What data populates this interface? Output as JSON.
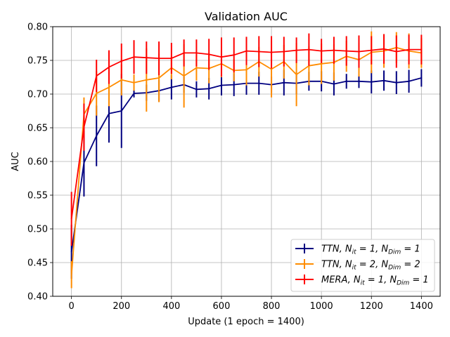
{
  "chart_data": {
    "type": "line",
    "title": "Validation AUC",
    "xlabel": "Update (1 epoch = 1400)",
    "ylabel": "AUC",
    "xlim": [
      -75,
      1475
    ],
    "ylim": [
      0.4,
      0.8
    ],
    "xticks": [
      "0",
      "200",
      "400",
      "600",
      "800",
      "1000",
      "1200",
      "1400"
    ],
    "yticks": [
      "0.40",
      "0.45",
      "0.50",
      "0.55",
      "0.60",
      "0.65",
      "0.70",
      "0.75",
      "0.80"
    ],
    "grid": true,
    "legend_position": "lower-right",
    "x": [
      0,
      50,
      100,
      150,
      200,
      250,
      300,
      350,
      400,
      450,
      500,
      550,
      600,
      650,
      700,
      750,
      800,
      850,
      900,
      950,
      1000,
      1050,
      1100,
      1150,
      1200,
      1250,
      1300,
      1350,
      1400
    ],
    "series": [
      {
        "name": "TTN, N_it = 1, N_Dim = 1",
        "color": "#000080",
        "values": [
          0.466,
          0.598,
          0.638,
          0.671,
          0.675,
          0.701,
          0.702,
          0.705,
          0.71,
          0.714,
          0.707,
          0.708,
          0.713,
          0.714,
          0.716,
          0.716,
          0.714,
          0.717,
          0.716,
          0.719,
          0.719,
          0.715,
          0.719,
          0.719,
          0.718,
          0.72,
          0.717,
          0.719,
          0.724
        ],
        "errors": [
          0.04,
          0.05,
          0.045,
          0.043,
          0.055,
          0.006,
          0.012,
          0.016,
          0.018,
          0.012,
          0.012,
          0.016,
          0.015,
          0.017,
          0.017,
          0.017,
          0.012,
          0.019,
          0.016,
          0.014,
          0.015,
          0.017,
          0.011,
          0.01,
          0.017,
          0.015,
          0.017,
          0.017,
          0.013
        ]
      },
      {
        "name": "TTN, N_it = 2, N_Dim = 2",
        "color": "#FF8C00",
        "values": [
          0.432,
          0.67,
          0.701,
          0.71,
          0.721,
          0.717,
          0.721,
          0.724,
          0.739,
          0.727,
          0.739,
          0.738,
          0.745,
          0.735,
          0.736,
          0.748,
          0.737,
          0.748,
          0.729,
          0.742,
          0.745,
          0.747,
          0.756,
          0.751,
          0.762,
          0.764,
          0.769,
          0.764,
          0.761
        ],
        "errors": [
          0.02,
          0.025,
          0.033,
          0.028,
          0.023,
          0.012,
          0.047,
          0.036,
          0.017,
          0.047,
          0.019,
          0.022,
          0.02,
          0.016,
          0.023,
          0.022,
          0.042,
          0.025,
          0.047,
          0.029,
          0.03,
          0.027,
          0.023,
          0.025,
          0.031,
          0.025,
          0.023,
          0.026,
          0.022
        ]
      },
      {
        "name": "MERA, N_it = 1, N_Dim = 1",
        "color": "#FF0000",
        "values": [
          0.515,
          0.651,
          0.727,
          0.74,
          0.749,
          0.755,
          0.754,
          0.753,
          0.753,
          0.761,
          0.761,
          0.759,
          0.755,
          0.758,
          0.764,
          0.763,
          0.762,
          0.763,
          0.765,
          0.766,
          0.764,
          0.765,
          0.764,
          0.763,
          0.765,
          0.767,
          0.763,
          0.766,
          0.766
        ],
        "errors": [
          0.04,
          0.035,
          0.024,
          0.025,
          0.026,
          0.025,
          0.024,
          0.025,
          0.023,
          0.02,
          0.02,
          0.023,
          0.029,
          0.026,
          0.021,
          0.023,
          0.024,
          0.022,
          0.019,
          0.024,
          0.018,
          0.02,
          0.022,
          0.024,
          0.021,
          0.022,
          0.024,
          0.022,
          0.022
        ]
      }
    ],
    "legend": [
      {
        "prefix": "TTN",
        "text": ", N",
        "sub1": "it",
        "mid": " = 1, N",
        "sub2": "Dim",
        "suffix": " = 1"
      },
      {
        "prefix": "TTN",
        "text": ", N",
        "sub1": "it",
        "mid": " = 2, N",
        "sub2": "Dim",
        "suffix": " = 2"
      },
      {
        "prefix": "MERA",
        "text": ", N",
        "sub1": "it",
        "mid": " = 1, N",
        "sub2": "Dim",
        "suffix": " = 1"
      }
    ]
  }
}
